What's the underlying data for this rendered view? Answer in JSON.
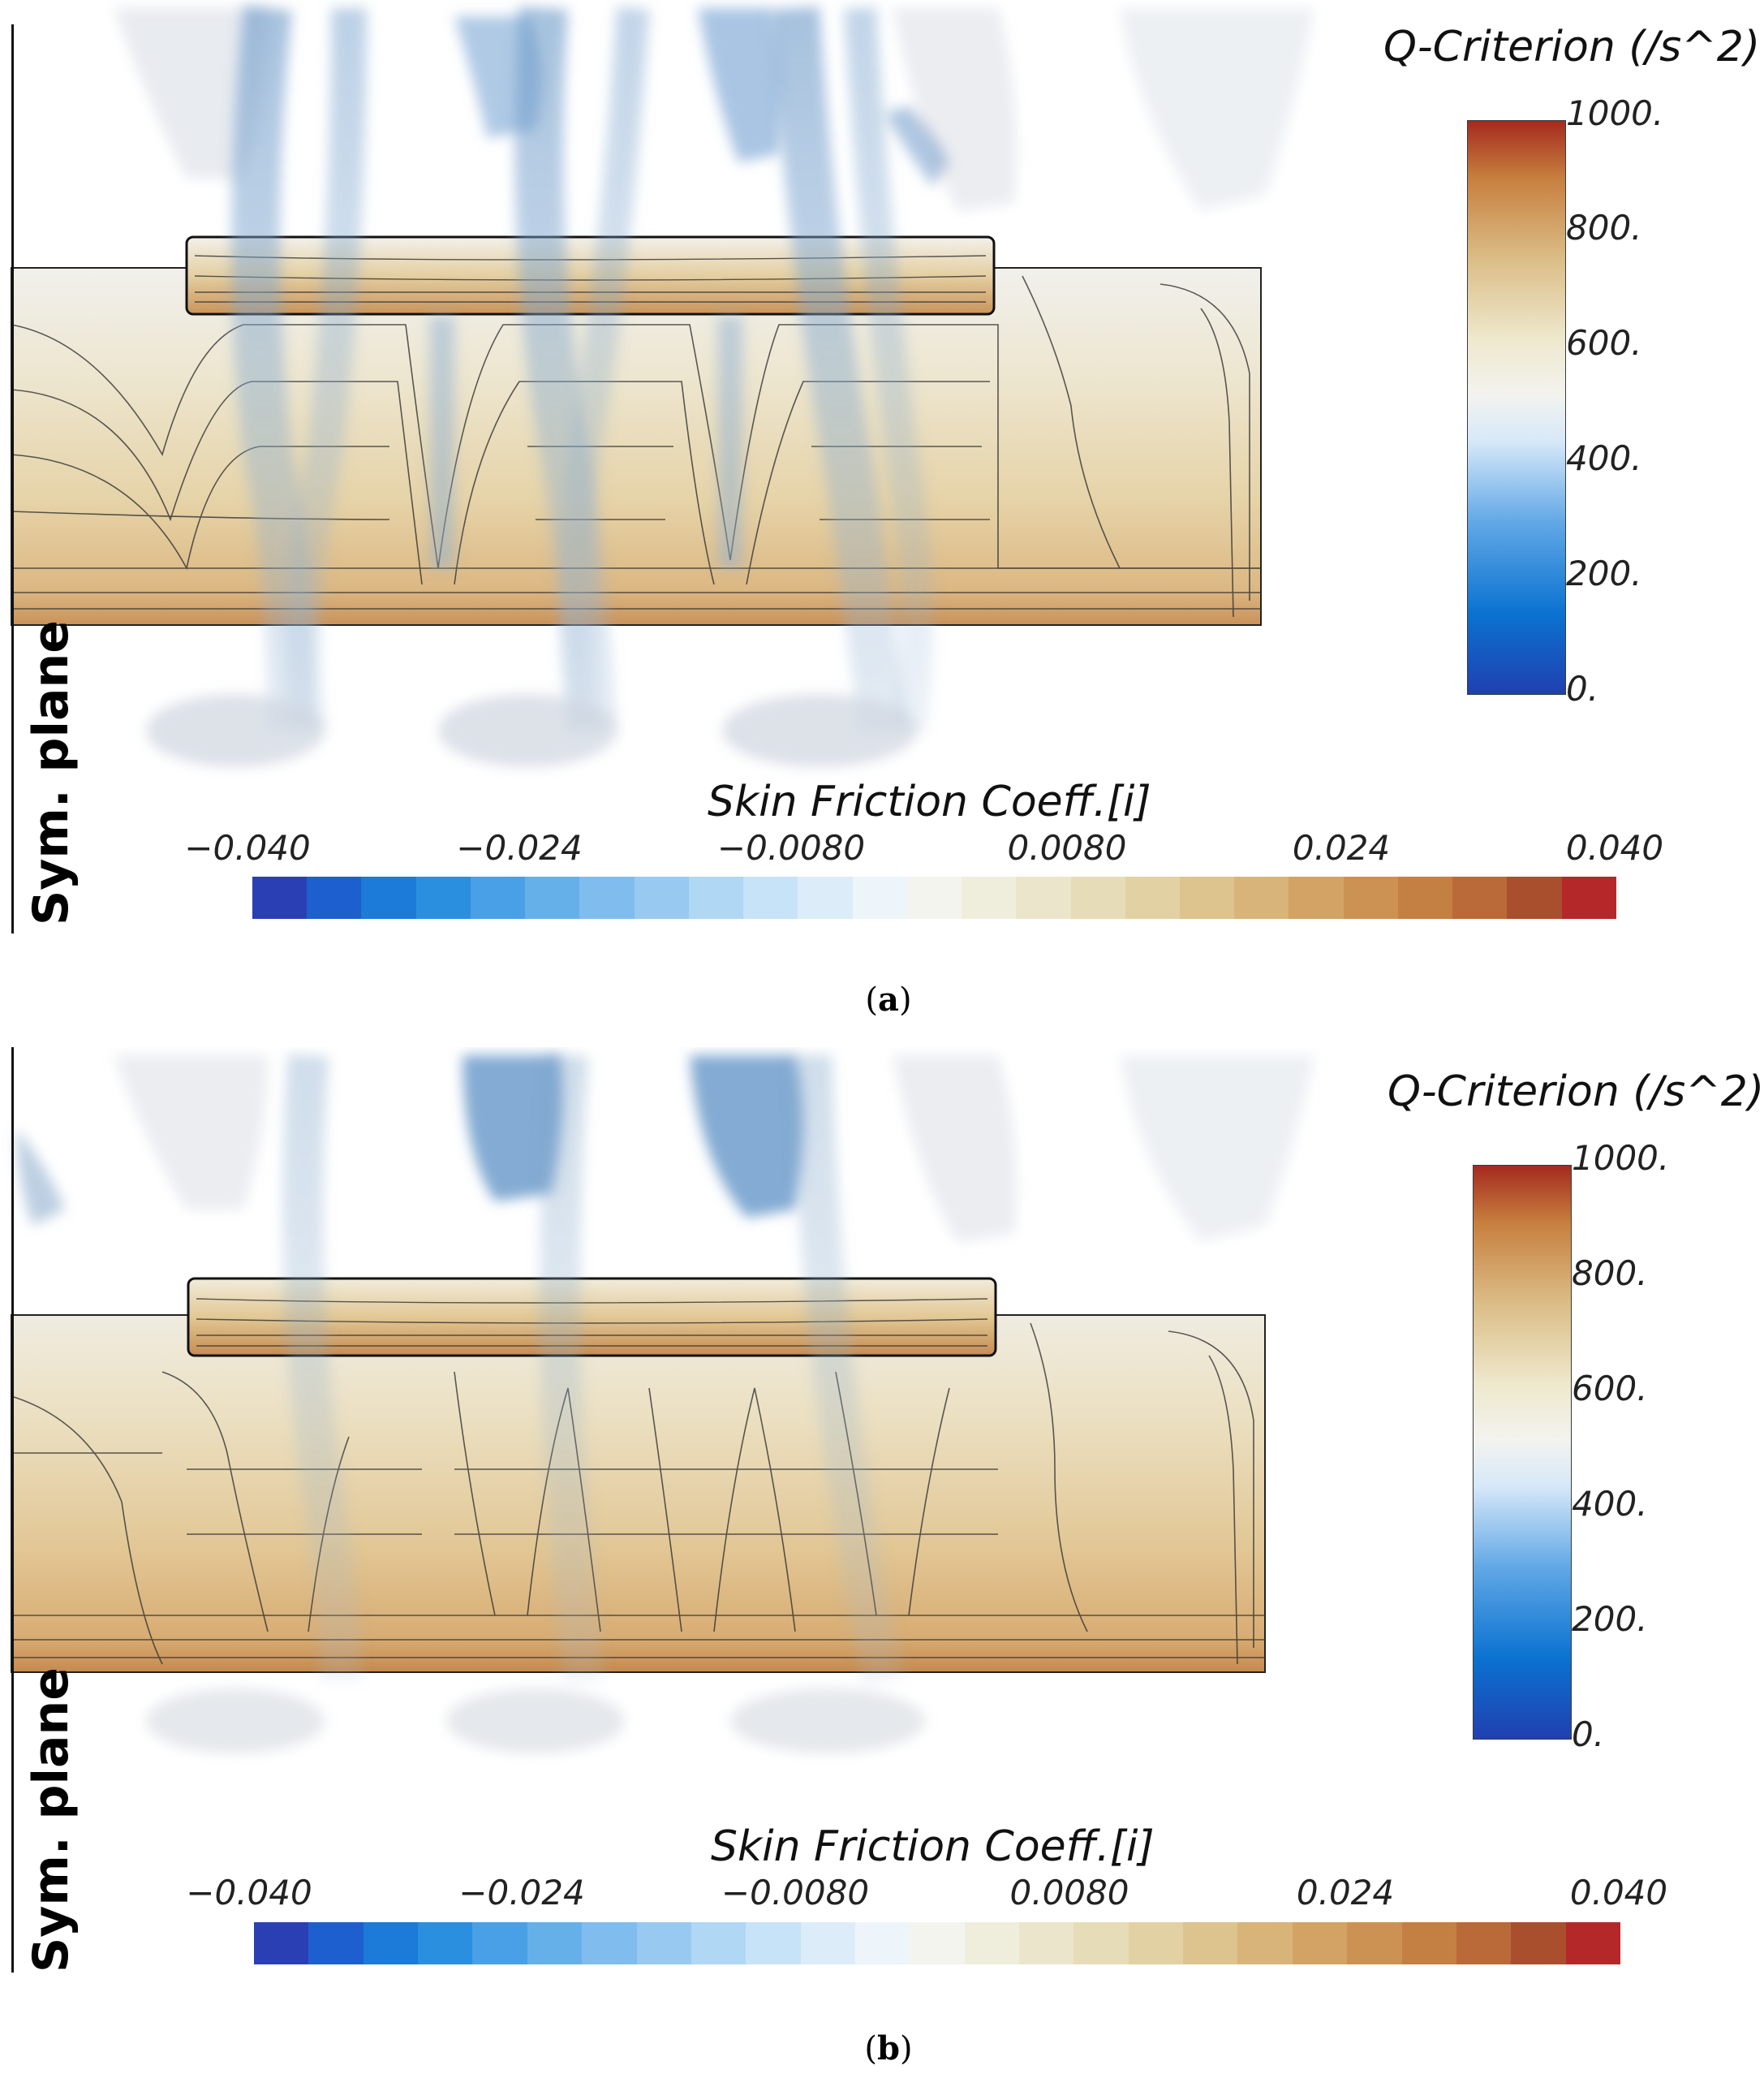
{
  "panels": [
    {
      "caption_open": "(",
      "caption_letter": "a",
      "caption_close": ")",
      "sym_plane_label": "Sym. plane",
      "q_legend": {
        "title": "Q-Criterion (/s^2)",
        "ticks": [
          "1000.",
          "800.",
          "600.",
          "400.",
          "200.",
          "0."
        ]
      },
      "skin_friction_legend": {
        "title": "Skin Friction Coeff.[i]",
        "ticks": [
          "−0.040",
          "−0.024",
          "−0.0080",
          "0.0080",
          "0.024",
          "0.040"
        ]
      }
    },
    {
      "caption_open": "(",
      "caption_letter": "b",
      "caption_close": ")",
      "sym_plane_label": "Sym. plane",
      "q_legend": {
        "title": "Q-Criterion (/s^2)",
        "ticks": [
          "1000.",
          "800.",
          "600.",
          "400.",
          "200.",
          "0."
        ]
      },
      "skin_friction_legend": {
        "title": "Skin Friction Coeff.[i]",
        "ticks": [
          "−0.040",
          "−0.024",
          "−0.0080",
          "0.0080",
          "0.024",
          "0.040"
        ]
      }
    }
  ],
  "colors": {
    "q_max": "#a52a1f",
    "q_mid": "#f3f3f0",
    "q_min": "#2040b0",
    "sf_bar": [
      "#2b3fb5",
      "#1e5fcf",
      "#1c7ad8",
      "#2b8fe0",
      "#49a0e6",
      "#66b0ea",
      "#80bdee",
      "#98caf1",
      "#b0d7f4",
      "#c7e3f7",
      "#dcedf9",
      "#edf5fb",
      "#f4f4ef",
      "#efeedd",
      "#ebe6cb",
      "#e6dcb7",
      "#e2d1a3",
      "#ddc38e",
      "#d8b47a",
      "#d2a365",
      "#cc9253",
      "#c47f43",
      "#b96a38",
      "#a94f2e",
      "#b5282a"
    ]
  }
}
